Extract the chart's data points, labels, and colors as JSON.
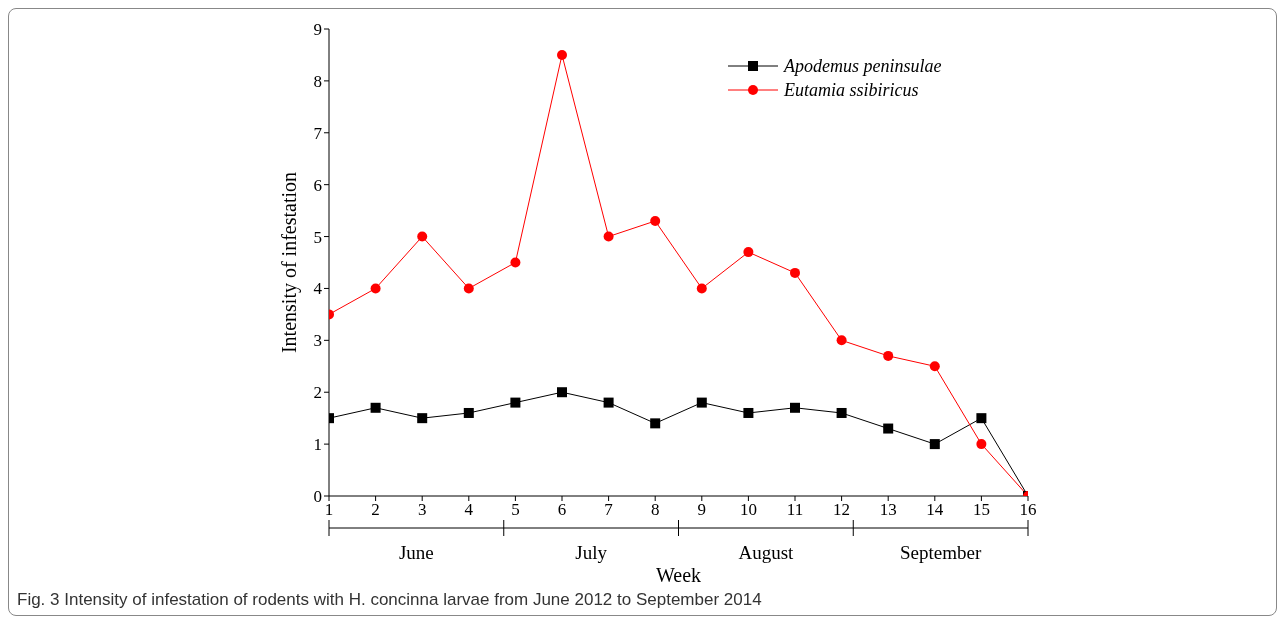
{
  "chart_data": {
    "type": "line",
    "xlabel": "Week",
    "ylabel": "Intensity of infestation",
    "x": [
      1,
      2,
      3,
      4,
      5,
      6,
      7,
      8,
      9,
      10,
      11,
      12,
      13,
      14,
      15,
      16
    ],
    "xlim": [
      1,
      16
    ],
    "xticks": [
      1,
      2,
      3,
      4,
      5,
      6,
      7,
      8,
      9,
      10,
      11,
      12,
      13,
      14,
      15,
      16
    ],
    "ylim": [
      0,
      9
    ],
    "yticks": [
      0,
      1,
      2,
      3,
      4,
      5,
      6,
      7,
      8,
      9
    ],
    "grid": false,
    "legend": "top right",
    "line_style": "solid",
    "series": [
      {
        "name": "Apodemus peninsulae",
        "color": "#000000",
        "marker": "square",
        "values": [
          1.5,
          1.7,
          1.5,
          1.6,
          1.8,
          2.0,
          1.8,
          1.4,
          1.8,
          1.6,
          1.7,
          1.6,
          1.3,
          1.0,
          1.5,
          0
        ]
      },
      {
        "name": "Eutamia ssibiricus",
        "color": "#ff0000",
        "marker": "circle",
        "values": [
          3.5,
          4,
          5,
          4,
          4.5,
          8.5,
          5,
          5.3,
          4,
          4.7,
          4.3,
          3,
          2.7,
          2.5,
          1,
          0
        ]
      }
    ],
    "annotations": [
      "June",
      "July",
      "August",
      "September",
      "Fig. 3 Intensity of infestation of rodents with H. concinna larvae from June 2012 to September 2014"
    ]
  }
}
